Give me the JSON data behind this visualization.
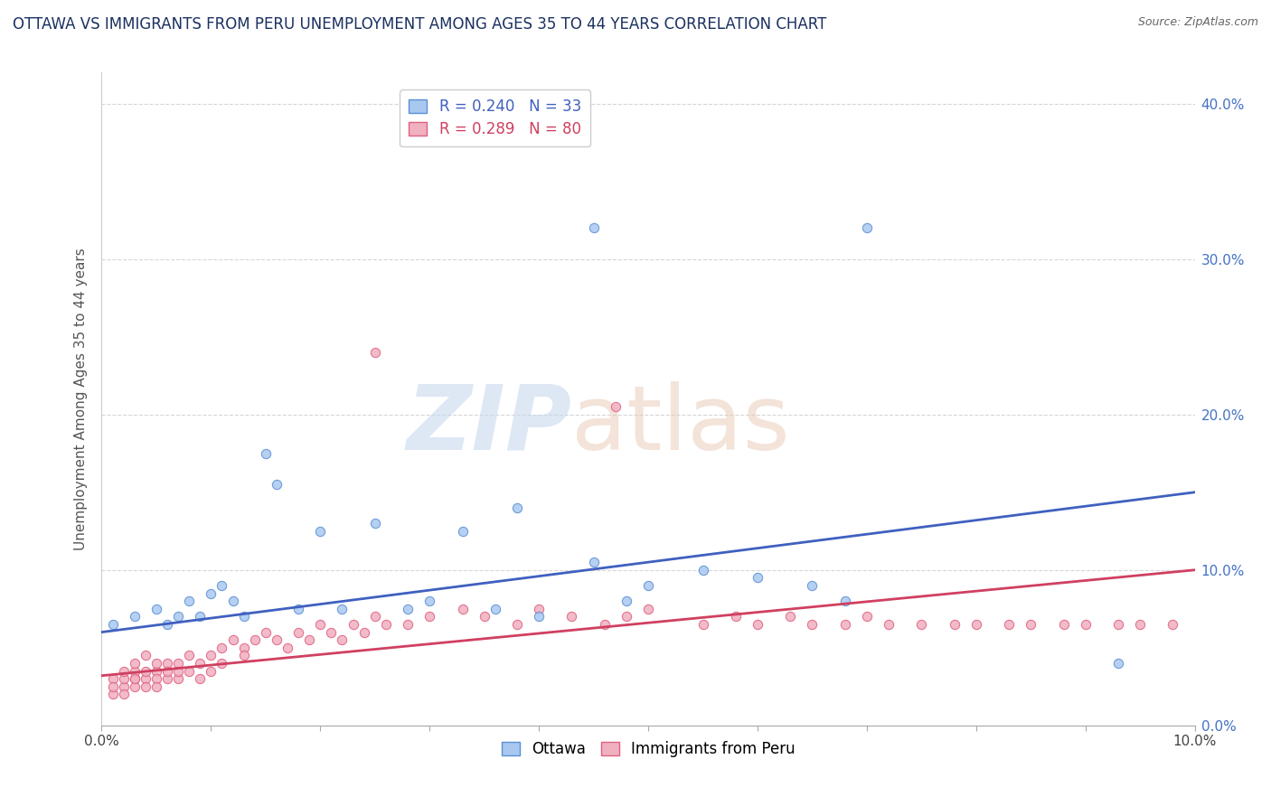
{
  "title": "OTTAWA VS IMMIGRANTS FROM PERU UNEMPLOYMENT AMONG AGES 35 TO 44 YEARS CORRELATION CHART",
  "source": "Source: ZipAtlas.com",
  "ylabel": "Unemployment Among Ages 35 to 44 years",
  "legend_ottawa": "Ottawa",
  "legend_peru": "Immigrants from Peru",
  "r_ottawa": 0.24,
  "n_ottawa": 33,
  "r_peru": 0.289,
  "n_peru": 80,
  "color_ottawa_face": "#a8c8f0",
  "color_ottawa_edge": "#5b8fd4",
  "color_peru_face": "#f0b0c0",
  "color_peru_edge": "#e06080",
  "color_line_ottawa": "#4060c0",
  "color_line_peru": "#d04060",
  "title_color": "#1a3060",
  "source_color": "#666666",
  "xmin": 0.0,
  "xmax": 0.1,
  "ymin": 0.0,
  "ymax": 0.42,
  "yticks": [
    0.0,
    0.1,
    0.2,
    0.3,
    0.4
  ],
  "ytick_labels": [
    "0.0%",
    "10.0%",
    "20.0%",
    "30.0%",
    "40.0%"
  ],
  "ottawa_x": [
    0.001,
    0.003,
    0.005,
    0.006,
    0.007,
    0.008,
    0.009,
    0.01,
    0.011,
    0.012,
    0.013,
    0.015,
    0.016,
    0.018,
    0.02,
    0.022,
    0.025,
    0.028,
    0.03,
    0.033,
    0.036,
    0.038,
    0.04,
    0.045,
    0.048,
    0.05,
    0.055,
    0.06,
    0.065,
    0.068,
    0.07,
    0.093,
    0.045
  ],
  "ottawa_y": [
    0.065,
    0.07,
    0.075,
    0.065,
    0.07,
    0.08,
    0.07,
    0.085,
    0.09,
    0.08,
    0.07,
    0.175,
    0.155,
    0.075,
    0.125,
    0.075,
    0.13,
    0.075,
    0.08,
    0.125,
    0.075,
    0.14,
    0.07,
    0.105,
    0.08,
    0.09,
    0.1,
    0.095,
    0.09,
    0.08,
    0.32,
    0.04,
    0.32
  ],
  "peru_x": [
    0.001,
    0.001,
    0.001,
    0.002,
    0.002,
    0.002,
    0.002,
    0.003,
    0.003,
    0.003,
    0.003,
    0.003,
    0.004,
    0.004,
    0.004,
    0.004,
    0.005,
    0.005,
    0.005,
    0.005,
    0.006,
    0.006,
    0.006,
    0.007,
    0.007,
    0.007,
    0.008,
    0.008,
    0.009,
    0.009,
    0.01,
    0.01,
    0.011,
    0.011,
    0.012,
    0.013,
    0.013,
    0.014,
    0.015,
    0.016,
    0.017,
    0.018,
    0.019,
    0.02,
    0.021,
    0.022,
    0.023,
    0.024,
    0.025,
    0.026,
    0.028,
    0.03,
    0.033,
    0.035,
    0.038,
    0.04,
    0.043,
    0.046,
    0.048,
    0.05,
    0.055,
    0.058,
    0.06,
    0.063,
    0.065,
    0.068,
    0.07,
    0.072,
    0.075,
    0.078,
    0.08,
    0.083,
    0.085,
    0.088,
    0.09,
    0.093,
    0.095,
    0.098,
    0.025,
    0.047
  ],
  "peru_y": [
    0.02,
    0.03,
    0.025,
    0.025,
    0.03,
    0.035,
    0.02,
    0.03,
    0.025,
    0.035,
    0.03,
    0.04,
    0.03,
    0.025,
    0.035,
    0.045,
    0.035,
    0.03,
    0.04,
    0.025,
    0.04,
    0.03,
    0.035,
    0.04,
    0.03,
    0.035,
    0.045,
    0.035,
    0.04,
    0.03,
    0.045,
    0.035,
    0.05,
    0.04,
    0.055,
    0.05,
    0.045,
    0.055,
    0.06,
    0.055,
    0.05,
    0.06,
    0.055,
    0.065,
    0.06,
    0.055,
    0.065,
    0.06,
    0.07,
    0.065,
    0.065,
    0.07,
    0.075,
    0.07,
    0.065,
    0.075,
    0.07,
    0.065,
    0.07,
    0.075,
    0.065,
    0.07,
    0.065,
    0.07,
    0.065,
    0.065,
    0.07,
    0.065,
    0.065,
    0.065,
    0.065,
    0.065,
    0.065,
    0.065,
    0.065,
    0.065,
    0.065,
    0.065,
    0.24,
    0.205
  ],
  "trend_ottawa_x0": 0.0,
  "trend_ottawa_y0": 0.06,
  "trend_ottawa_x1": 0.1,
  "trend_ottawa_y1": 0.15,
  "trend_peru_x0": 0.0,
  "trend_peru_y0": 0.032,
  "trend_peru_x1": 0.1,
  "trend_peru_y1": 0.1,
  "marker_size": 14,
  "title_fontsize": 12,
  "ylabel_fontsize": 11,
  "tick_fontsize": 11,
  "legend_fontsize": 12
}
